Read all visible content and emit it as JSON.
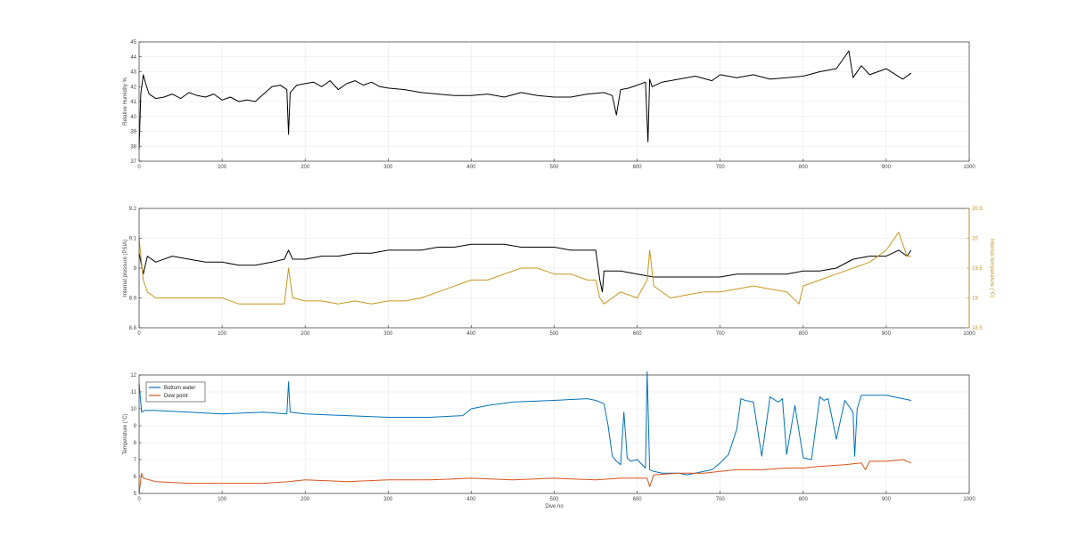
{
  "chart_data": [
    {
      "type": "line",
      "title": "",
      "xlabel": "",
      "ylabel": "Relative Humidity %",
      "xlim": [
        0,
        1000
      ],
      "ylim": [
        37,
        45
      ],
      "xticks": [
        0,
        100,
        200,
        300,
        400,
        500,
        600,
        700,
        800,
        900,
        1000
      ],
      "yticks": [
        37,
        38,
        39,
        40,
        41,
        42,
        43,
        44,
        45
      ],
      "grid": true,
      "series": [
        {
          "color": "#000000",
          "x": [
            0,
            2,
            5,
            8,
            12,
            20,
            30,
            40,
            50,
            60,
            70,
            80,
            90,
            100,
            110,
            120,
            130,
            140,
            150,
            160,
            170,
            178,
            180,
            182,
            190,
            200,
            210,
            220,
            230,
            240,
            250,
            260,
            270,
            280,
            290,
            300,
            320,
            340,
            360,
            380,
            400,
            420,
            440,
            460,
            480,
            500,
            520,
            540,
            560,
            570,
            575,
            580,
            590,
            600,
            610,
            613,
            615,
            618,
            630,
            650,
            670,
            690,
            700,
            720,
            740,
            760,
            780,
            800,
            820,
            840,
            855,
            860,
            870,
            880,
            900,
            920,
            930
          ],
          "y": [
            37.8,
            41.5,
            42.8,
            42.2,
            41.5,
            41.2,
            41.3,
            41.5,
            41.2,
            41.6,
            41.4,
            41.3,
            41.5,
            41.1,
            41.3,
            41.0,
            41.1,
            41.0,
            41.5,
            42.0,
            42.1,
            41.8,
            38.8,
            41.6,
            42.1,
            42.2,
            42.3,
            42.0,
            42.4,
            41.8,
            42.2,
            42.4,
            42.1,
            42.3,
            42.0,
            41.9,
            41.8,
            41.6,
            41.5,
            41.4,
            41.4,
            41.5,
            41.3,
            41.6,
            41.4,
            41.3,
            41.3,
            41.5,
            41.6,
            41.4,
            40.1,
            41.8,
            41.9,
            42.1,
            42.3,
            38.3,
            42.5,
            42.0,
            42.3,
            42.5,
            42.7,
            42.4,
            42.8,
            42.6,
            42.8,
            42.5,
            42.6,
            42.7,
            43.0,
            43.2,
            44.4,
            42.6,
            43.4,
            42.8,
            43.2,
            42.5,
            42.9
          ]
        }
      ]
    },
    {
      "type": "line",
      "title": "",
      "xlabel": "",
      "ylabel": "Internal pressure (PSIA)",
      "y2label": "Internal temperature (°C)",
      "xlim": [
        0,
        1000
      ],
      "ylim": [
        8.8,
        9.2
      ],
      "y2lim": [
        18.5,
        20.5
      ],
      "xticks": [
        0,
        100,
        200,
        300,
        400,
        500,
        600,
        700,
        800,
        900,
        1000
      ],
      "yticks": [
        8.8,
        8.9,
        9,
        9.1,
        9.2
      ],
      "y2ticks": [
        18.5,
        19,
        19.5,
        20,
        20.5
      ],
      "grid": true,
      "series": [
        {
          "axis": "left",
          "color": "#000000",
          "x": [
            0,
            5,
            10,
            20,
            40,
            60,
            80,
            100,
            120,
            140,
            160,
            175,
            180,
            185,
            200,
            220,
            240,
            260,
            280,
            300,
            320,
            340,
            360,
            380,
            400,
            420,
            440,
            460,
            480,
            500,
            520,
            540,
            550,
            555,
            558,
            560,
            580,
            600,
            620,
            640,
            660,
            680,
            700,
            720,
            740,
            760,
            780,
            800,
            820,
            840,
            860,
            880,
            900,
            915,
            925,
            930
          ],
          "y": [
            9.05,
            8.98,
            9.04,
            9.02,
            9.04,
            9.03,
            9.02,
            9.02,
            9.01,
            9.01,
            9.02,
            9.03,
            9.06,
            9.03,
            9.03,
            9.04,
            9.04,
            9.05,
            9.05,
            9.06,
            9.06,
            9.06,
            9.07,
            9.07,
            9.08,
            9.08,
            9.08,
            9.07,
            9.07,
            9.07,
            9.06,
            9.06,
            9.06,
            8.96,
            8.92,
            8.99,
            8.99,
            8.98,
            8.97,
            8.97,
            8.97,
            8.97,
            8.97,
            8.98,
            8.98,
            8.98,
            8.98,
            8.99,
            8.99,
            9.0,
            9.03,
            9.04,
            9.04,
            9.06,
            9.04,
            9.06
          ]
        },
        {
          "axis": "right",
          "color": "#c8961e",
          "x": [
            0,
            5,
            10,
            20,
            40,
            60,
            80,
            100,
            120,
            140,
            160,
            175,
            180,
            185,
            200,
            220,
            240,
            260,
            280,
            300,
            320,
            340,
            360,
            380,
            400,
            420,
            440,
            460,
            480,
            500,
            520,
            540,
            550,
            555,
            560,
            580,
            600,
            612,
            615,
            620,
            640,
            660,
            680,
            700,
            720,
            740,
            760,
            780,
            795,
            800,
            820,
            840,
            860,
            880,
            900,
            915,
            925,
            930
          ],
          "y": [
            20.0,
            19.3,
            19.1,
            19.0,
            19.0,
            19.0,
            19.0,
            19.0,
            18.9,
            18.9,
            18.9,
            18.9,
            19.5,
            19.0,
            18.95,
            18.95,
            18.9,
            18.95,
            18.9,
            18.95,
            18.95,
            19.0,
            19.1,
            19.2,
            19.3,
            19.3,
            19.4,
            19.5,
            19.5,
            19.4,
            19.4,
            19.3,
            19.3,
            19.0,
            18.9,
            19.1,
            19.0,
            19.3,
            19.8,
            19.2,
            19.0,
            19.05,
            19.1,
            19.1,
            19.15,
            19.2,
            19.15,
            19.1,
            18.9,
            19.2,
            19.3,
            19.4,
            19.5,
            19.6,
            19.8,
            20.1,
            19.7,
            19.7
          ]
        }
      ]
    },
    {
      "type": "line",
      "title": "",
      "xlabel": "Dive no",
      "ylabel": "Temperature (°C)",
      "xlim": [
        0,
        1000
      ],
      "ylim": [
        5,
        12
      ],
      "xticks": [
        0,
        100,
        200,
        300,
        400,
        500,
        600,
        700,
        800,
        900,
        1000
      ],
      "yticks": [
        5,
        6,
        7,
        8,
        9,
        10,
        11,
        12
      ],
      "grid": true,
      "legend": "top-left",
      "series": [
        {
          "name": "Bottom water",
          "color": "#0072bd",
          "x": [
            0,
            3,
            6,
            20,
            60,
            100,
            150,
            178,
            180,
            182,
            200,
            250,
            300,
            350,
            390,
            400,
            420,
            450,
            500,
            540,
            550,
            560,
            565,
            570,
            575,
            580,
            584,
            588,
            592,
            600,
            610,
            612,
            615,
            620,
            630,
            650,
            660,
            680,
            690,
            700,
            710,
            720,
            725,
            730,
            740,
            750,
            760,
            770,
            775,
            780,
            790,
            800,
            810,
            820,
            825,
            830,
            840,
            850,
            860,
            862,
            865,
            870,
            880,
            900,
            920,
            930
          ],
          "y": [
            11.5,
            9.8,
            9.9,
            9.9,
            9.8,
            9.7,
            9.8,
            9.7,
            11.6,
            9.8,
            9.7,
            9.6,
            9.5,
            9.5,
            9.6,
            10.0,
            10.2,
            10.4,
            10.5,
            10.6,
            10.5,
            10.3,
            9.0,
            7.2,
            6.9,
            6.7,
            9.8,
            7.1,
            6.9,
            7.0,
            6.5,
            12.2,
            6.4,
            6.3,
            6.2,
            6.2,
            6.1,
            6.3,
            6.4,
            6.8,
            7.3,
            8.8,
            10.6,
            10.5,
            10.4,
            7.2,
            10.7,
            10.4,
            10.6,
            7.3,
            10.2,
            7.1,
            7.0,
            10.7,
            10.5,
            10.6,
            8.2,
            10.5,
            9.8,
            7.2,
            10.0,
            10.8,
            10.8,
            10.8,
            10.6,
            10.5
          ]
        },
        {
          "name": "Dew point",
          "color": "#d95319",
          "x": [
            0,
            3,
            5,
            20,
            60,
            100,
            150,
            180,
            200,
            250,
            300,
            350,
            400,
            450,
            500,
            550,
            580,
            600,
            612,
            615,
            620,
            650,
            680,
            700,
            720,
            750,
            780,
            800,
            820,
            850,
            870,
            875,
            880,
            900,
            920,
            930
          ],
          "y": [
            5.0,
            6.2,
            5.9,
            5.7,
            5.6,
            5.6,
            5.6,
            5.7,
            5.8,
            5.7,
            5.8,
            5.8,
            5.9,
            5.8,
            5.9,
            5.8,
            5.9,
            5.9,
            5.9,
            5.4,
            6.1,
            6.2,
            6.2,
            6.3,
            6.4,
            6.4,
            6.5,
            6.5,
            6.6,
            6.7,
            6.8,
            6.4,
            6.9,
            6.9,
            7.0,
            6.8
          ]
        }
      ]
    }
  ]
}
